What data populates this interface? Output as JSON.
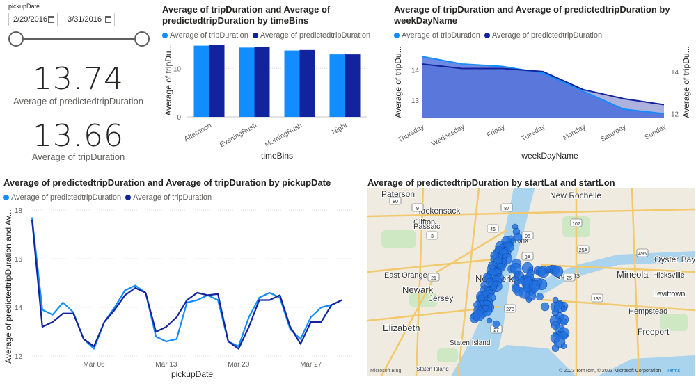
{
  "colors": {
    "light": "#118dff",
    "dark": "#12239e",
    "area_fill": "#3f63d9"
  },
  "slicer": {
    "title": "pickupDate",
    "start_date": "2/29/2016",
    "end_date": "3/31/2016",
    "range": [
      0,
      1
    ]
  },
  "kpis": [
    {
      "value": "13.74",
      "label": "Average of predictedtripDuration"
    },
    {
      "value": "13.66",
      "label": "Average of tripDuration"
    }
  ],
  "chart_data": [
    {
      "type": "bar",
      "title": "Average of tripDuration and Average of predictedtripDuration by timeBins",
      "categories": [
        "Afternoon",
        "EveningRush",
        "MorningRush",
        "Night"
      ],
      "series": [
        {
          "name": "Average of tripDuration",
          "values": [
            14.7,
            14.3,
            13.7,
            12.9
          ]
        },
        {
          "name": "Average of predictedtripDuration",
          "values": [
            14.8,
            14.4,
            13.8,
            12.9
          ]
        }
      ],
      "xlabel": "timeBins",
      "ylabel": "Average of tripDu...",
      "yticks": [
        "0",
        "10"
      ],
      "ylim": [
        0,
        15.5
      ]
    },
    {
      "type": "area",
      "title": "Average of tripDuration and Average of predictedtripDuration by weekDayName",
      "categories": [
        "Thursday",
        "Wednesday",
        "Friday",
        "Tuesday",
        "Monday",
        "Saturday",
        "Sunday"
      ],
      "series": [
        {
          "name": "Average of tripDuration",
          "values": [
            14.45,
            14.2,
            14.12,
            13.9,
            13.3,
            12.7,
            12.55
          ]
        },
        {
          "name": "Average of predictedtripDuration",
          "values": [
            14.2,
            14.05,
            14.05,
            13.95,
            13.35,
            13.05,
            12.85
          ]
        }
      ],
      "xlabel": "weekDayName",
      "ylabel": "Average of tripDu...",
      "yticks_left": [
        "14",
        "13"
      ],
      "yticks_right": [
        "14",
        "12"
      ],
      "ylim": [
        12.4,
        14.8
      ]
    },
    {
      "type": "line",
      "title": "Average of predictedtripDuration and Average of tripDuration by pickupDate",
      "x": [
        "Feb 29",
        "Mar 01",
        "Mar 02",
        "Mar 03",
        "Mar 04",
        "Mar 05",
        "Mar 06",
        "Mar 07",
        "Mar 08",
        "Mar 09",
        "Mar 10",
        "Mar 11",
        "Mar 12",
        "Mar 13",
        "Mar 14",
        "Mar 15",
        "Mar 16",
        "Mar 17",
        "Mar 18",
        "Mar 19",
        "Mar 20",
        "Mar 21",
        "Mar 22",
        "Mar 23",
        "Mar 24",
        "Mar 25",
        "Mar 26",
        "Mar 27",
        "Mar 28",
        "Mar 29",
        "Mar 30",
        "Mar 31"
      ],
      "xticks": [
        "Mar 06",
        "Mar 13",
        "Mar 20",
        "Mar 27"
      ],
      "series": [
        {
          "name": "Average of predictedtripDuration",
          "values": [
            17.7,
            13.9,
            13.7,
            14.2,
            13.8,
            12.7,
            12.3,
            13.4,
            14.0,
            14.7,
            14.9,
            14.6,
            12.8,
            12.6,
            12.7,
            14.2,
            14.3,
            14.5,
            14.3,
            12.6,
            12.4,
            13.6,
            14.4,
            14.6,
            14.4,
            13.1,
            12.7,
            13.6,
            14.0,
            14.1,
            14.3,
            null
          ]
        },
        {
          "name": "Average of tripDuration",
          "values": [
            17.6,
            13.2,
            13.4,
            13.75,
            13.75,
            12.7,
            12.4,
            13.4,
            13.9,
            14.5,
            14.8,
            14.6,
            13.0,
            13.2,
            13.6,
            14.3,
            14.6,
            14.5,
            14.55,
            12.6,
            12.3,
            13.2,
            14.3,
            14.3,
            14.5,
            13.2,
            12.5,
            13.4,
            13.4,
            14.1,
            14.3,
            null
          ]
        }
      ],
      "xlabel": "pickupDate",
      "ylabel": "Average of predictedtripDuration and Av...",
      "yticks": [
        "18",
        "16",
        "14",
        "12"
      ],
      "ylim": [
        12,
        18
      ]
    }
  ],
  "map": {
    "title": "Average of predictedtripDuration by startLat and startLon",
    "places": [
      "Paterson",
      "New Rochelle",
      "Hackensack",
      "Clifton",
      "Passaic",
      "Bronx",
      "East Orange",
      "Newark",
      "New York",
      "Queens",
      "Jersey",
      "Mineola",
      "Oyster Bay",
      "Hicksville",
      "Levittown",
      "Hempstead",
      "Elizabeth",
      "Staten Island",
      "Freeport",
      "Staten Island"
    ],
    "road_labels": [
      "80",
      "9",
      "3",
      "46",
      "95",
      "9A",
      "21",
      "87",
      "27",
      "278",
      "25",
      "135",
      "25A",
      "107",
      "495"
    ],
    "attribution": "© 2023 TomTom, © 2023 Microsoft Corporation",
    "terms": "Terms",
    "logo": "Microsoft Bing"
  }
}
